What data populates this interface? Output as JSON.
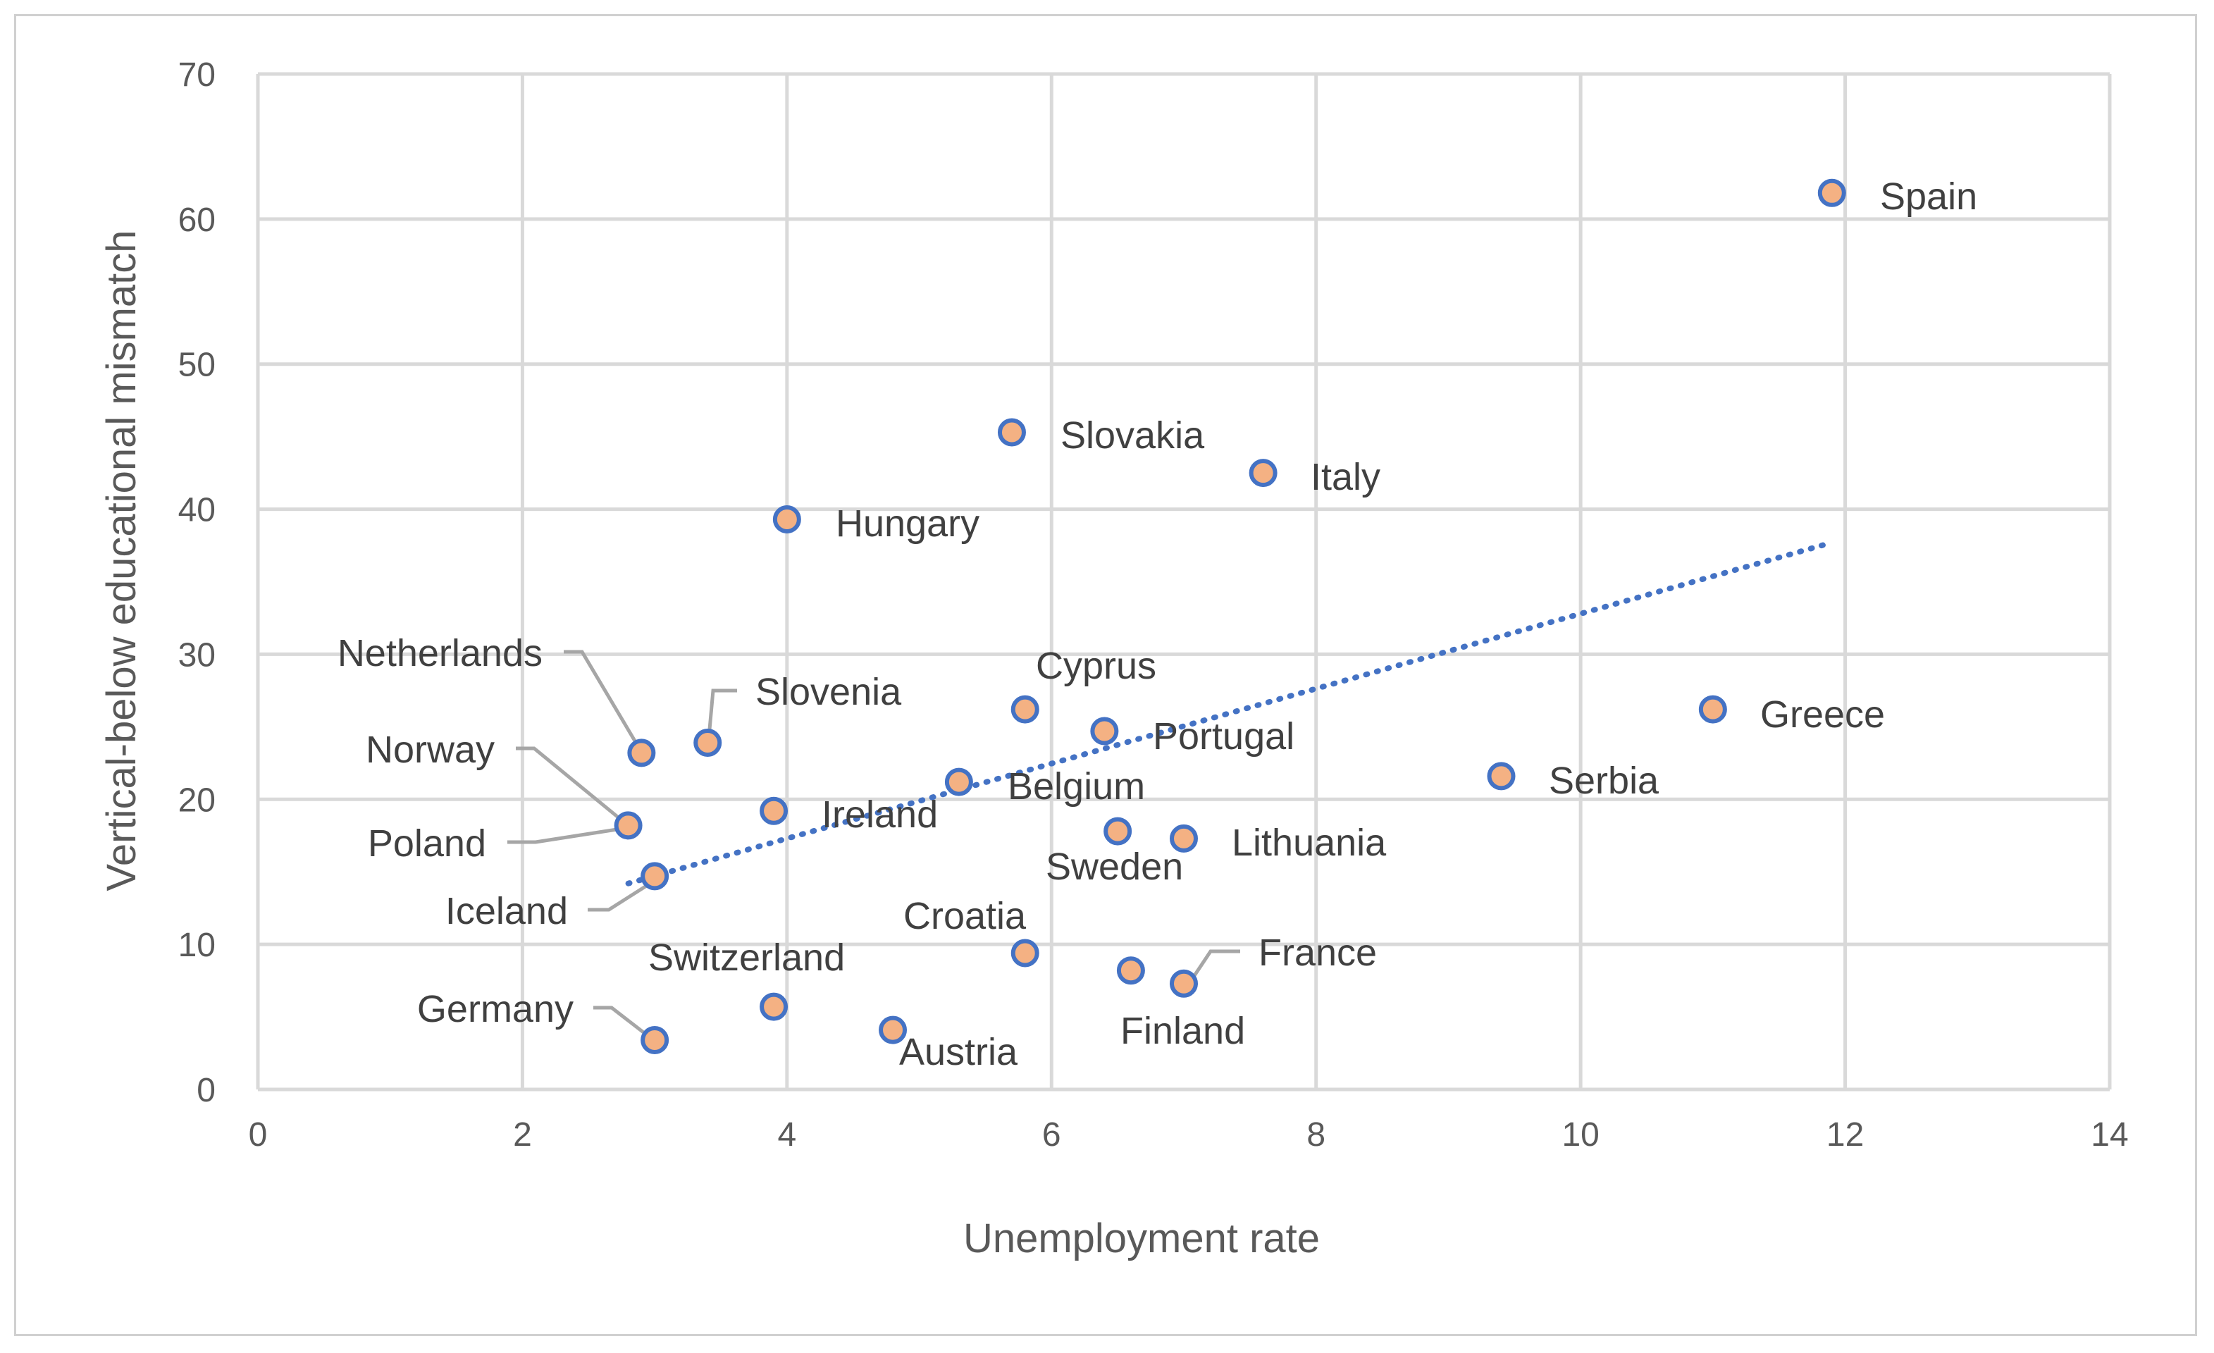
{
  "chart_data": {
    "type": "scatter",
    "xlabel": "Unemployment rate",
    "ylabel": "Vertical-below educational mismatch",
    "xlim": [
      0,
      14
    ],
    "ylim": [
      0,
      70
    ],
    "xticks": [
      "0",
      "2",
      "4",
      "6",
      "8",
      "10",
      "12",
      "14"
    ],
    "yticks": [
      "0",
      "10",
      "20",
      "30",
      "40",
      "50",
      "60",
      "70"
    ],
    "grid": true,
    "colors": {
      "marker_fill": "#f4b183",
      "marker_edge": "#4472c4",
      "trendline": "#4472c4",
      "grid": "#d9d9d9"
    },
    "trendline": {
      "style": "dotted",
      "x": [
        2.8,
        11.9
      ],
      "y": [
        14.2,
        37.7
      ]
    },
    "points": [
      {
        "label": "Spain",
        "x": 11.9,
        "y": 61.8
      },
      {
        "label": "Slovakia",
        "x": 5.7,
        "y": 45.3
      },
      {
        "label": "Italy",
        "x": 7.6,
        "y": 42.5
      },
      {
        "label": "Hungary",
        "x": 4.0,
        "y": 39.3
      },
      {
        "label": "Netherlands",
        "x": 2.9,
        "y": 23.2
      },
      {
        "label": "Slovenia",
        "x": 3.4,
        "y": 23.9
      },
      {
        "label": "Cyprus",
        "x": 5.8,
        "y": 26.2
      },
      {
        "label": "Portugal",
        "x": 6.4,
        "y": 24.7
      },
      {
        "label": "Greece",
        "x": 11.0,
        "y": 26.2
      },
      {
        "label": "Serbia",
        "x": 9.4,
        "y": 21.6
      },
      {
        "label": "Belgium",
        "x": 5.3,
        "y": 21.2
      },
      {
        "label": "Norway",
        "x": 2.8,
        "y": 18.2
      },
      {
        "label": "Poland",
        "x": 2.8,
        "y": 18.2
      },
      {
        "label": "Ireland",
        "x": 3.9,
        "y": 19.2
      },
      {
        "label": "Sweden",
        "x": 6.5,
        "y": 17.8
      },
      {
        "label": "Lithuania",
        "x": 7.0,
        "y": 17.3
      },
      {
        "label": "Iceland",
        "x": 3.0,
        "y": 14.7
      },
      {
        "label": "Croatia",
        "x": 5.8,
        "y": 9.4
      },
      {
        "label": "Switzerland",
        "x": 3.9,
        "y": 5.7
      },
      {
        "label": "Finland",
        "x": 6.6,
        "y": 8.2
      },
      {
        "label": "France",
        "x": 7.0,
        "y": 7.3
      },
      {
        "label": "Germany",
        "x": 3.0,
        "y": 3.4
      },
      {
        "label": "Austria",
        "x": 4.8,
        "y": 4.1
      }
    ]
  }
}
